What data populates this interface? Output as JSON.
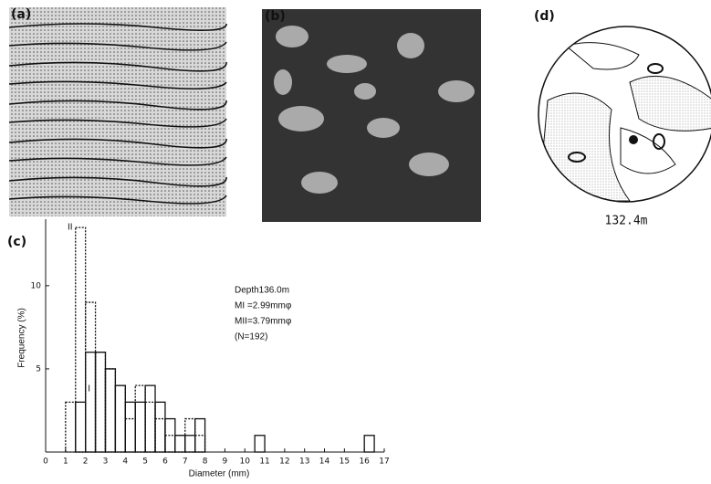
{
  "panels": {
    "a": "(a)",
    "b": "(b)",
    "c": "(c)",
    "d": "(d)",
    "d_caption": "132.4m"
  },
  "chart_data": {
    "type": "histogram",
    "x_label": "Diameter (mm)",
    "y_label": "Frequency (%)",
    "annotations": [
      "Depth136.0m",
      "MI =2.99mmφ",
      "MII=3.79mmφ",
      "(N=192)"
    ],
    "bins": [
      0.5,
      1,
      1.5,
      2,
      2.5,
      3,
      3.5,
      4,
      4.5,
      5,
      5.5,
      6,
      6.5,
      7,
      7.5,
      8,
      8.5,
      9,
      9.5,
      10,
      10.5,
      11,
      11.5,
      12,
      12.5,
      13,
      13.5,
      14,
      14.5,
      15,
      15.5,
      16,
      16.5
    ],
    "series": [
      {
        "name": "I",
        "color": "#111",
        "line_style": "solid",
        "values": [
          0,
          0,
          3,
          6,
          6,
          5,
          4,
          3,
          3,
          4,
          3,
          2,
          1,
          1,
          2,
          0,
          0,
          0,
          0,
          0,
          1,
          0,
          0,
          0,
          0,
          0,
          0,
          0,
          0,
          0,
          0,
          1
        ]
      },
      {
        "name": "II",
        "color": "#111",
        "line_style": "dotted",
        "values": [
          0,
          3,
          13.5,
          9,
          6,
          5,
          4,
          2,
          4,
          3,
          2,
          1,
          1,
          2,
          1,
          0,
          0,
          0,
          0,
          0,
          0,
          0,
          0,
          0,
          0,
          0,
          0,
          0,
          0,
          0,
          0,
          0
        ]
      }
    ],
    "xlim": [
      0,
      17
    ],
    "ylim": [
      0,
      14
    ],
    "xticks": [
      0,
      1,
      2,
      3,
      4,
      5,
      6,
      7,
      8,
      9,
      10,
      11,
      12,
      13,
      14,
      15,
      16,
      17
    ],
    "yticks": [
      5,
      10
    ]
  }
}
